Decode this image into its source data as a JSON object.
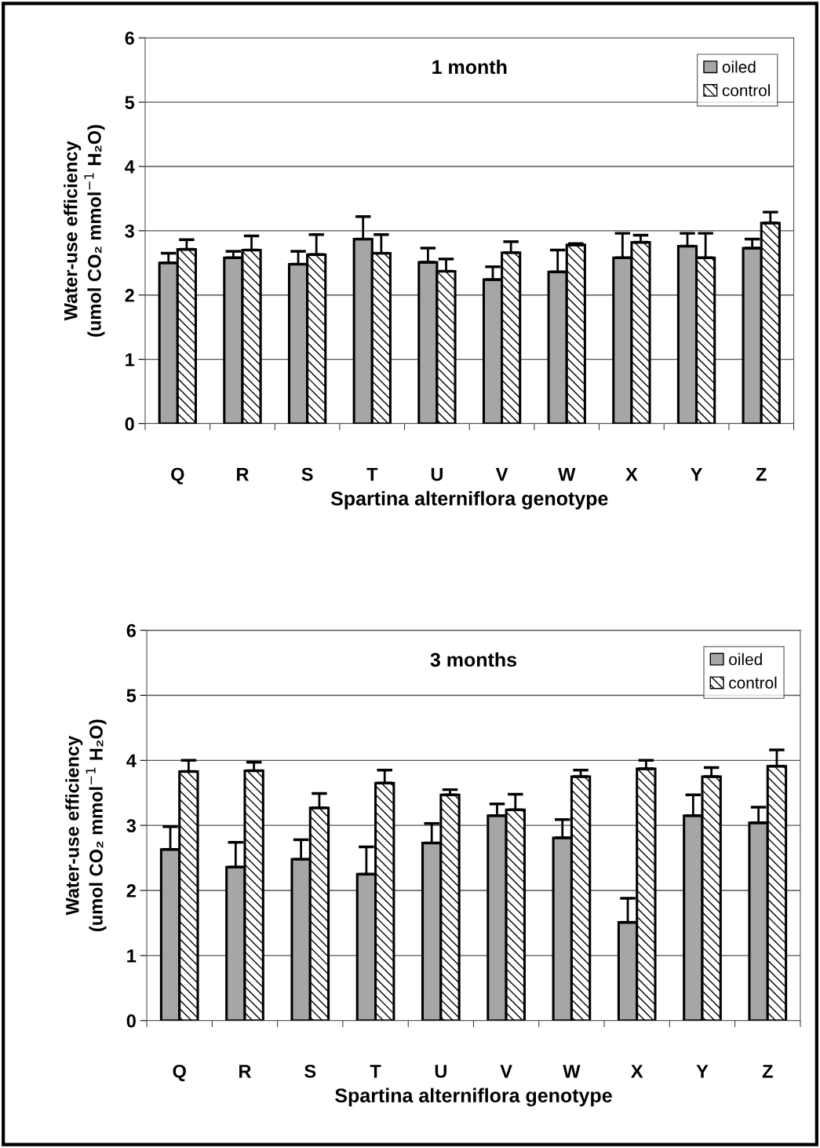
{
  "chart_data": [
    {
      "type": "bar",
      "title": "1 month",
      "xlabel": "Spartina alterniflora genotype",
      "ylabel": "Water-use efficiency\n(umol CO₂ mmol$^{−1}$ H₂O)",
      "categories": [
        "Q",
        "R",
        "S",
        "T",
        "U",
        "V",
        "W",
        "X",
        "Y",
        "Z"
      ],
      "series": [
        {
          "name": "oiled",
          "color": "#a6a6a6",
          "values": [
            2.5,
            2.58,
            2.48,
            2.87,
            2.51,
            2.24,
            2.36,
            2.58,
            2.76,
            2.73
          ],
          "errors": [
            [
              2.5,
              2.65
            ],
            [
              2.58,
              2.68
            ],
            [
              2.48,
              2.68
            ],
            [
              2.87,
              3.22
            ],
            [
              2.51,
              2.73
            ],
            [
              2.24,
              2.44
            ],
            [
              2.36,
              2.7
            ],
            [
              2.58,
              2.96
            ],
            [
              2.76,
              2.96
            ],
            [
              2.73,
              2.87
            ]
          ]
        },
        {
          "name": "control",
          "color": "#000000",
          "values": [
            2.71,
            2.7,
            2.63,
            2.65,
            2.37,
            2.66,
            2.78,
            2.82,
            2.58,
            3.12
          ],
          "errors": [
            [
              2.71,
              2.86
            ],
            [
              2.7,
              2.92
            ],
            [
              2.63,
              2.94
            ],
            [
              2.65,
              2.94
            ],
            [
              2.37,
              2.56
            ],
            [
              2.66,
              2.83
            ],
            [
              2.78,
              2.8
            ],
            [
              2.82,
              2.93
            ],
            [
              2.58,
              2.96
            ],
            [
              3.12,
              3.29
            ]
          ]
        }
      ],
      "ylim": [
        0,
        6
      ],
      "yticks": [
        0,
        1,
        2,
        3,
        4,
        5,
        6
      ],
      "grid": "y",
      "legend": "top right"
    },
    {
      "type": "bar",
      "title": "3 months",
      "xlabel": "Spartina alterniflora genotype",
      "ylabel": "Water-use efficiency\n(umol CO₂ mmol$^{−1}$ H₂O)",
      "categories": [
        "Q",
        "R",
        "S",
        "T",
        "U",
        "V",
        "W",
        "X",
        "Y",
        "Z"
      ],
      "series": [
        {
          "name": "oiled",
          "color": "#a6a6a6",
          "values": [
            2.63,
            2.36,
            2.48,
            2.25,
            2.73,
            3.15,
            2.81,
            1.51,
            3.15,
            3.04
          ],
          "errors": [
            [
              2.63,
              2.98
            ],
            [
              2.36,
              2.74
            ],
            [
              2.48,
              2.78
            ],
            [
              2.25,
              2.67
            ],
            [
              2.73,
              3.03
            ],
            [
              3.15,
              3.33
            ],
            [
              2.81,
              3.09
            ],
            [
              1.51,
              1.88
            ],
            [
              3.15,
              3.47
            ],
            [
              3.04,
              3.28
            ]
          ]
        },
        {
          "name": "control",
          "color": "#000000",
          "values": [
            3.83,
            3.84,
            3.27,
            3.65,
            3.47,
            3.24,
            3.75,
            3.87,
            3.75,
            3.91
          ],
          "errors": [
            [
              3.83,
              4.0
            ],
            [
              3.84,
              3.97
            ],
            [
              3.27,
              3.49
            ],
            [
              3.65,
              3.85
            ],
            [
              3.47,
              3.55
            ],
            [
              3.24,
              3.48
            ],
            [
              3.75,
              3.85
            ],
            [
              3.87,
              4.0
            ],
            [
              3.75,
              3.89
            ],
            [
              3.91,
              4.16
            ]
          ]
        }
      ],
      "ylim": [
        0,
        6
      ],
      "yticks": [
        0,
        1,
        2,
        3,
        4,
        5,
        6
      ],
      "grid": "y",
      "legend": "top right"
    }
  ]
}
